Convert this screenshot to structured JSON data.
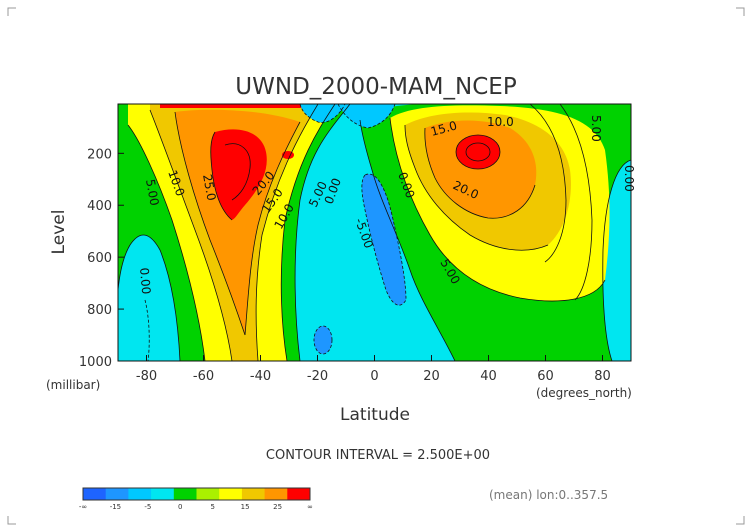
{
  "chart_data": {
    "type": "heatmap",
    "title": "UWND_2000-MAM_NCEP",
    "xlabel": "Latitude",
    "xunits": "(degrees_north)",
    "ylabel": "Level",
    "yunits": "(millibar)",
    "xlim": [
      -90,
      90
    ],
    "ylim": [
      1000,
      10
    ],
    "x_ticks": [
      -80,
      -60,
      -40,
      -20,
      0,
      20,
      40,
      60,
      80
    ],
    "y_ticks": [
      200,
      400,
      600,
      800,
      1000
    ],
    "footer": "CONTOUR INTERVAL = 2.500E+00",
    "note": "(mean) lon:0..357.5",
    "grid": false,
    "legend": {
      "placement": "bottom-left",
      "labels": [
        "-∞",
        "-15",
        "-5",
        "0",
        "5",
        "15",
        "25",
        "∞"
      ],
      "colors": [
        "#1e64ff",
        "#1e96ff",
        "#00c8ff",
        "#00e6f0",
        "#00d200",
        "#aaf000",
        "#ffff00",
        "#f0c800",
        "#ff9600",
        "#ff0000"
      ]
    },
    "jets": [
      {
        "lat": -53,
        "level": 250,
        "value": 27.5
      },
      {
        "lat": 32,
        "level": 200,
        "value": 27.5
      }
    ],
    "contour_labels": [
      "10.0",
      "5.00",
      "25.0",
      "20.0",
      "15.0",
      "10.0",
      "5.00",
      "0.00",
      "0.00",
      "-5.00",
      "15.0",
      "10.0",
      "5.00",
      "20.0",
      "5.00",
      "0.00",
      "0.00"
    ]
  }
}
